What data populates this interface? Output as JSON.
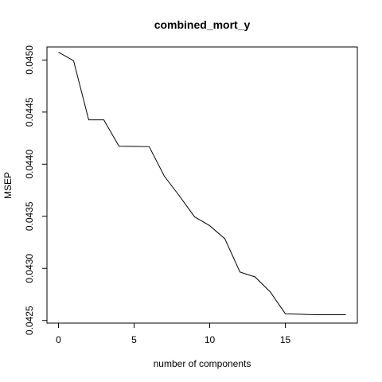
{
  "chart_data": {
    "type": "line",
    "title": "combined_mort_y",
    "xlabel": "number of components",
    "ylabel": "MSEP",
    "xlim": [
      -0.76,
      19.76
    ],
    "ylim": [
      0.042475,
      0.045125
    ],
    "xticks": [
      0,
      5,
      10,
      15
    ],
    "xtick_labels": [
      "0",
      "5",
      "10",
      "15"
    ],
    "yticks": [
      0.0425,
      0.043,
      0.0435,
      0.044,
      0.0445,
      0.045
    ],
    "ytick_labels": [
      "0.0425",
      "0.0430",
      "0.0435",
      "0.0440",
      "0.0445",
      "0.0450"
    ],
    "grid": false,
    "legend": "none",
    "line_color": "#000000",
    "series": [
      {
        "x": [
          0,
          1,
          2,
          3,
          4,
          5,
          6,
          7,
          8,
          9,
          10,
          11,
          12,
          13,
          14,
          15,
          16,
          17,
          18,
          19
        ],
        "values": [
          0.045075,
          0.044993,
          0.044425,
          0.044425,
          0.044172,
          0.04417,
          0.044168,
          0.043885,
          0.043695,
          0.043495,
          0.04341,
          0.043285,
          0.042965,
          0.042918,
          0.042775,
          0.042565,
          0.04256,
          0.042555,
          0.042555,
          0.042555
        ]
      }
    ]
  }
}
